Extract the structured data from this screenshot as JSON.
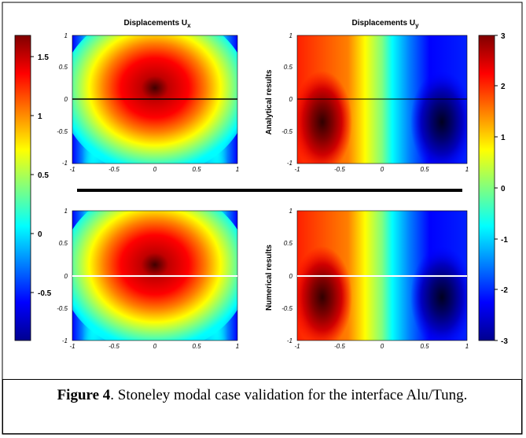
{
  "figure": {
    "caption_label": "Figure 4",
    "caption_text": ". Stoneley modal case validation for the interface Alu/Tung."
  },
  "panels": {
    "title_ux": "Displacements U",
    "title_ux_sub": "x",
    "title_uy": "Displacements U",
    "title_uy_sub": "y",
    "row_label_top": "Analytical results",
    "row_label_bottom": "Numerical results"
  },
  "colorbars": {
    "left_ticks": [
      "1.5",
      "1",
      "0.5",
      "0",
      "-0.5"
    ],
    "right_ticks": [
      "3",
      "2",
      "1",
      "0",
      "-1",
      "-2",
      "-3"
    ]
  },
  "axes": {
    "x_ticks": [
      "-1",
      "-0.5",
      "0",
      "0.5",
      "1"
    ],
    "y_ticks": [
      "1",
      "0.5",
      "0",
      "-0.5",
      "-1"
    ]
  },
  "colors": {
    "colormap": "jet",
    "separator": "#000000",
    "interface_line_top": "#000000",
    "interface_line_bottom": "#ffffff"
  }
}
